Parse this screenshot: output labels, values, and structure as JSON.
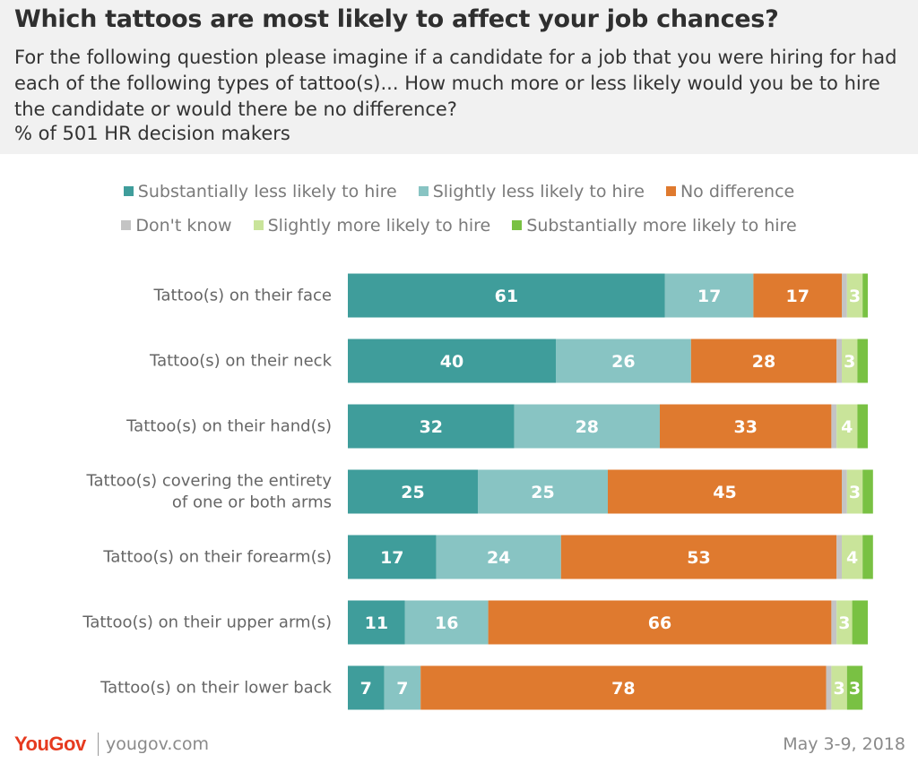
{
  "header": {
    "title": "Which tattoos are most likely to affect your job chances?",
    "subtitle": "For the following question please imagine if a candidate for a job that you were hiring for had each of the following types of tattoo(s)... How much more or less likely would you be to hire the candidate or would there be no difference?",
    "sample": "% of 501 HR decision makers"
  },
  "footer": {
    "brand": "YouGov",
    "url": "yougov.com",
    "date": "May 3-9, 2018"
  },
  "chart_data": {
    "type": "bar",
    "orientation": "horizontal",
    "stacked": true,
    "legend_position": "top",
    "categories": [
      "Tattoo(s) on their face",
      "Tattoo(s) on their neck",
      "Tattoo(s) on their hand(s)",
      [
        "Tattoo(s) covering the entirety",
        "of one or both arms"
      ],
      "Tattoo(s) on their forearm(s)",
      "Tattoo(s) on their upper arm(s)",
      "Tattoo(s) on their lower back"
    ],
    "series": [
      {
        "name": "Substantially less likely to hire",
        "color": "#3f9d9b",
        "values": [
          61,
          40,
          32,
          25,
          17,
          11,
          7
        ]
      },
      {
        "name": "Slightly less likely to hire",
        "color": "#88c4c3",
        "values": [
          17,
          26,
          28,
          25,
          24,
          16,
          7
        ]
      },
      {
        "name": "No difference",
        "color": "#df7a2f",
        "values": [
          17,
          28,
          33,
          45,
          53,
          66,
          78
        ]
      },
      {
        "name": "Don't know",
        "color": "#c4c4c4",
        "values": [
          1,
          1,
          1,
          1,
          1,
          1,
          1
        ]
      },
      {
        "name": "Slightly more likely to hire",
        "color": "#c9e49a",
        "values": [
          3,
          3,
          4,
          3,
          4,
          3,
          3
        ]
      },
      {
        "name": "Substantially more likely to hire",
        "color": "#79c143",
        "values": [
          1,
          2,
          2,
          2,
          2,
          3,
          3
        ]
      }
    ],
    "data_labels": [
      [
        "61",
        "17",
        "17",
        "",
        "3",
        ""
      ],
      [
        "40",
        "26",
        "28",
        "",
        "3",
        ""
      ],
      [
        "32",
        "28",
        "33",
        "",
        "4",
        ""
      ],
      [
        "25",
        "25",
        "45",
        "",
        "3",
        ""
      ],
      [
        "17",
        "24",
        "53",
        "",
        "4",
        ""
      ],
      [
        "11",
        "16",
        "66",
        "",
        "3",
        ""
      ],
      [
        "7",
        "7",
        "78",
        "",
        "3",
        "3"
      ]
    ],
    "xlim": [
      0,
      100
    ],
    "grid": false
  }
}
